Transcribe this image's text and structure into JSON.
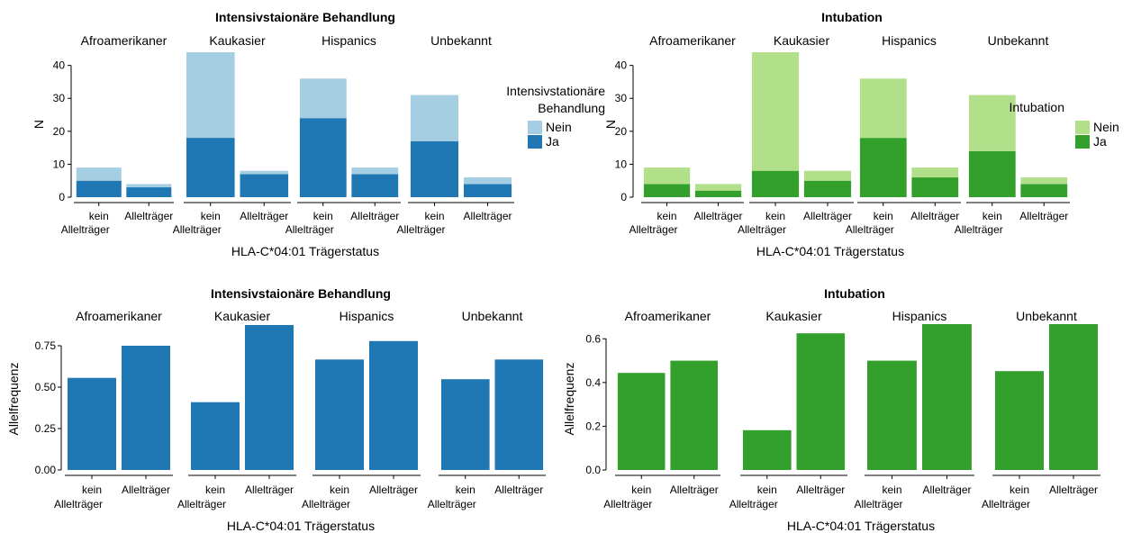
{
  "chart_data": [
    {
      "type": "bar",
      "title": "Intensivstaionäre Behandlung",
      "xlabel": "HLA-C*04:01 Trägerstatus",
      "ylabel": "N",
      "ylim": [
        0,
        44
      ],
      "yticks": [
        0,
        10,
        20,
        30,
        40
      ],
      "facets": [
        "Afroamerikaner",
        "Kaukasier",
        "Hispanics",
        "Unbekannt"
      ],
      "categories": [
        "kein Allelträger",
        "Allelträger"
      ],
      "category_lines": [
        [
          "kein",
          "Allelträger"
        ],
        [
          "Allelträger"
        ]
      ],
      "stacked": true,
      "legend": {
        "title_lines": [
          "Intensivstationäre",
          "Behandlung"
        ],
        "position": "right"
      },
      "series": [
        {
          "name": "Nein",
          "color": "#a6cee3",
          "values": [
            [
              4,
              1
            ],
            [
              26,
              1
            ],
            [
              12,
              2
            ],
            [
              14,
              2
            ]
          ]
        },
        {
          "name": "Ja",
          "color": "#1f78b4",
          "values": [
            [
              5,
              3
            ],
            [
              18,
              7
            ],
            [
              24,
              7
            ],
            [
              17,
              4
            ]
          ]
        }
      ]
    },
    {
      "type": "bar",
      "title": "Intubation",
      "xlabel": "HLA-C*04:01 Trägerstatus",
      "ylabel": "N",
      "ylim": [
        0,
        44
      ],
      "yticks": [
        0,
        10,
        20,
        30,
        40
      ],
      "facets": [
        "Afroamerikaner",
        "Kaukasier",
        "Hispanics",
        "Unbekannt"
      ],
      "categories": [
        "kein Allelträger",
        "Allelträger"
      ],
      "category_lines": [
        [
          "kein",
          "Allelträger"
        ],
        [
          "Allelträger"
        ]
      ],
      "stacked": true,
      "legend": {
        "title_lines": [
          "Intubation"
        ],
        "position": "right"
      },
      "series": [
        {
          "name": "Nein",
          "color": "#b2df8a",
          "values": [
            [
              5,
              2
            ],
            [
              36,
              3
            ],
            [
              18,
              3
            ],
            [
              17,
              2
            ]
          ]
        },
        {
          "name": "Ja",
          "color": "#33a02c",
          "values": [
            [
              4,
              2
            ],
            [
              8,
              5
            ],
            [
              18,
              6
            ],
            [
              14,
              4
            ]
          ]
        }
      ]
    },
    {
      "type": "bar",
      "title": "Intensivstaionäre Behandlung",
      "xlabel": "HLA-C*04:01 Trägerstatus",
      "ylabel": "Allelfrequenz",
      "ylim": [
        0,
        0.875
      ],
      "yticks": [
        "0.00",
        "0.25",
        "0.50",
        "0.75"
      ],
      "facets": [
        "Afroamerikaner",
        "Kaukasier",
        "Hispanics",
        "Unbekannt"
      ],
      "categories": [
        "kein Allelträger",
        "Allelträger"
      ],
      "category_lines": [
        [
          "kein",
          "Allelträger"
        ],
        [
          "Allelträger"
        ]
      ],
      "stacked": false,
      "series": [
        {
          "color": "#1f78b4",
          "values": [
            [
              0.556,
              0.75
            ],
            [
              0.409,
              0.875
            ],
            [
              0.667,
              0.778
            ],
            [
              0.548,
              0.667
            ]
          ]
        }
      ]
    },
    {
      "type": "bar",
      "title": "Intubation",
      "xlabel": "HLA-C*04:01 Trägerstatus",
      "ylabel": "Allelfrequenz",
      "ylim": [
        0,
        0.667
      ],
      "yticks": [
        "0.0",
        "0.2",
        "0.4",
        "0.6"
      ],
      "facets": [
        "Afroamerikaner",
        "Kaukasier",
        "Hispanics",
        "Unbekannt"
      ],
      "categories": [
        "kein Allelträger",
        "Allelträger"
      ],
      "category_lines": [
        [
          "kein",
          "Allelträger"
        ],
        [
          "Allelträger"
        ]
      ],
      "stacked": false,
      "series": [
        {
          "color": "#33a02c",
          "values": [
            [
              0.444,
              0.5
            ],
            [
              0.182,
              0.625
            ],
            [
              0.5,
              0.667
            ],
            [
              0.452,
              0.667
            ]
          ]
        }
      ]
    }
  ]
}
